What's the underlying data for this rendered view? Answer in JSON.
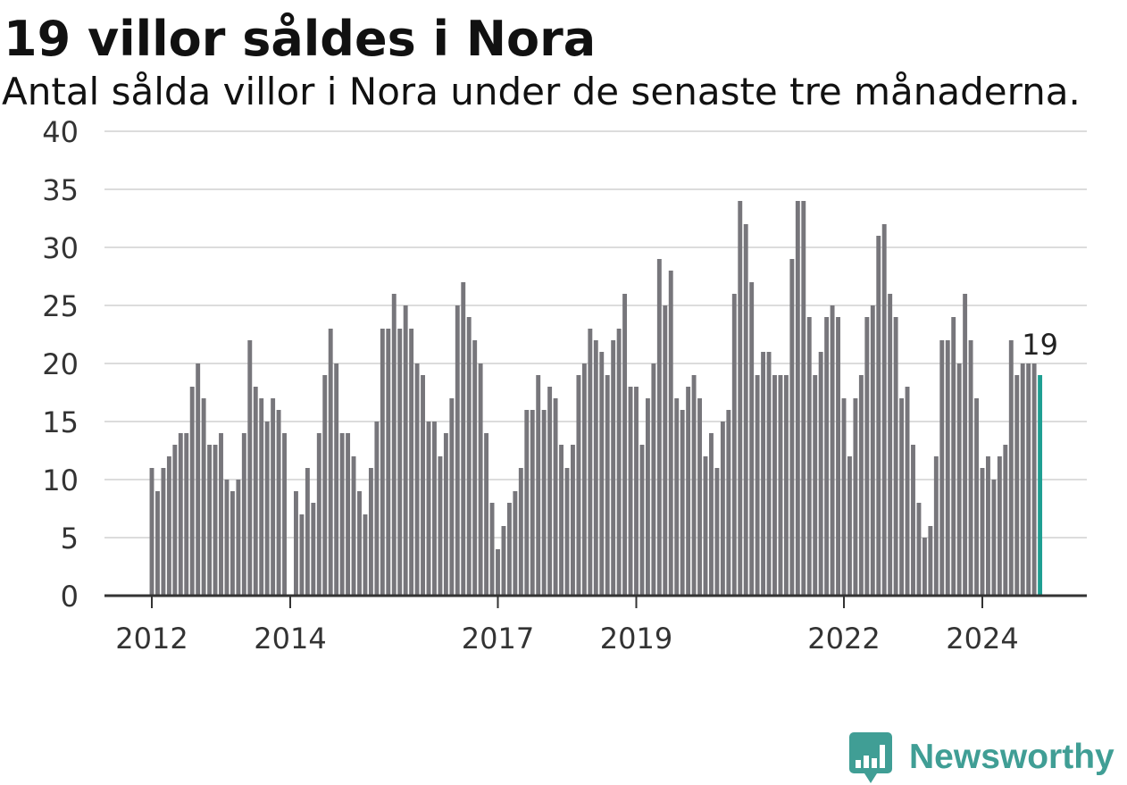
{
  "chart_data": {
    "type": "bar",
    "title": "19 villor såldes i Nora",
    "subtitle": "Antal sålda villor i Nora under de senaste tre månaderna.",
    "x": [
      "2012-01",
      "2012-02",
      "2012-03",
      "2012-04",
      "2012-05",
      "2012-06",
      "2012-07",
      "2012-08",
      "2012-09",
      "2012-10",
      "2012-11",
      "2012-12",
      "2013-01",
      "2013-02",
      "2013-03",
      "2013-04",
      "2013-05",
      "2013-06",
      "2013-07",
      "2013-08",
      "2013-09",
      "2013-10",
      "2013-11",
      "2013-12",
      "2014-01",
      "2014-02",
      "2014-03",
      "2014-04",
      "2014-05",
      "2014-06",
      "2014-07",
      "2014-08",
      "2014-09",
      "2014-10",
      "2014-11",
      "2014-12",
      "2015-01",
      "2015-02",
      "2015-03",
      "2015-04",
      "2015-05",
      "2015-06",
      "2015-07",
      "2015-08",
      "2015-09",
      "2015-10",
      "2015-11",
      "2015-12",
      "2016-01",
      "2016-02",
      "2016-03",
      "2016-04",
      "2016-05",
      "2016-06",
      "2016-07",
      "2016-08",
      "2016-09",
      "2016-10",
      "2016-11",
      "2016-12",
      "2017-01",
      "2017-02",
      "2017-03",
      "2017-04",
      "2017-05",
      "2017-06",
      "2017-07",
      "2017-08",
      "2017-09",
      "2017-10",
      "2017-11",
      "2017-12",
      "2018-01",
      "2018-02",
      "2018-03",
      "2018-04",
      "2018-05",
      "2018-06",
      "2018-07",
      "2018-08",
      "2018-09",
      "2018-10",
      "2018-11",
      "2018-12",
      "2019-01",
      "2019-02",
      "2019-03",
      "2019-04",
      "2019-05",
      "2019-06",
      "2019-07",
      "2019-08",
      "2019-09",
      "2019-10",
      "2019-11",
      "2019-12",
      "2020-01",
      "2020-02",
      "2020-03",
      "2020-04",
      "2020-05",
      "2020-06",
      "2020-07",
      "2020-08",
      "2020-09",
      "2020-10",
      "2020-11",
      "2020-12",
      "2021-01",
      "2021-02",
      "2021-03",
      "2021-04",
      "2021-05",
      "2021-06",
      "2021-07",
      "2021-08",
      "2021-09",
      "2021-10",
      "2021-11",
      "2021-12",
      "2022-01",
      "2022-02",
      "2022-03",
      "2022-04",
      "2022-05",
      "2022-06",
      "2022-07",
      "2022-08",
      "2022-09",
      "2022-10",
      "2022-11",
      "2022-12",
      "2023-01",
      "2023-02",
      "2023-03",
      "2023-04",
      "2023-05",
      "2023-06",
      "2023-07",
      "2023-08",
      "2023-09",
      "2023-10",
      "2023-11",
      "2023-12",
      "2024-01",
      "2024-02",
      "2024-03",
      "2024-04",
      "2024-05",
      "2024-06",
      "2024-07",
      "2024-08",
      "2024-09",
      "2024-10",
      "2024-11"
    ],
    "values": [
      11,
      9,
      11,
      12,
      13,
      14,
      14,
      18,
      20,
      17,
      13,
      13,
      14,
      10,
      9,
      10,
      14,
      22,
      18,
      17,
      15,
      17,
      16,
      14,
      null,
      9,
      7,
      11,
      8,
      14,
      19,
      23,
      20,
      14,
      14,
      12,
      9,
      7,
      11,
      15,
      23,
      23,
      26,
      23,
      25,
      23,
      20,
      19,
      15,
      15,
      12,
      14,
      17,
      25,
      27,
      24,
      22,
      20,
      14,
      8,
      4,
      6,
      8,
      9,
      11,
      16,
      16,
      19,
      16,
      18,
      17,
      13,
      11,
      13,
      19,
      20,
      23,
      22,
      21,
      19,
      22,
      23,
      26,
      18,
      18,
      13,
      17,
      20,
      29,
      25,
      28,
      17,
      16,
      18,
      19,
      17,
      12,
      14,
      11,
      15,
      16,
      26,
      34,
      32,
      27,
      19,
      21,
      21,
      19,
      19,
      19,
      29,
      34,
      34,
      24,
      19,
      21,
      24,
      25,
      24,
      17,
      12,
      17,
      19,
      24,
      25,
      31,
      32,
      26,
      24,
      17,
      18,
      13,
      8,
      5,
      6,
      12,
      22,
      22,
      24,
      20,
      26,
      22,
      17,
      11,
      12,
      10,
      12,
      13,
      22,
      19,
      20,
      20,
      20,
      19
    ],
    "ylim": [
      0,
      40
    ],
    "yticks": [
      0,
      5,
      10,
      15,
      20,
      25,
      30,
      35,
      40
    ],
    "xtick_labels": [
      "2012",
      "2014",
      "2017",
      "2019",
      "2022",
      "2024"
    ],
    "highlight": {
      "x": "2024-11",
      "label": "19"
    },
    "grid": true
  },
  "colors": {
    "bar": "#77767b",
    "highlight_bar": "#1e9f92",
    "brand": "#409e95"
  },
  "logo": {
    "text": "Newsworthy",
    "icon": "newsworthy-logo-icon"
  }
}
